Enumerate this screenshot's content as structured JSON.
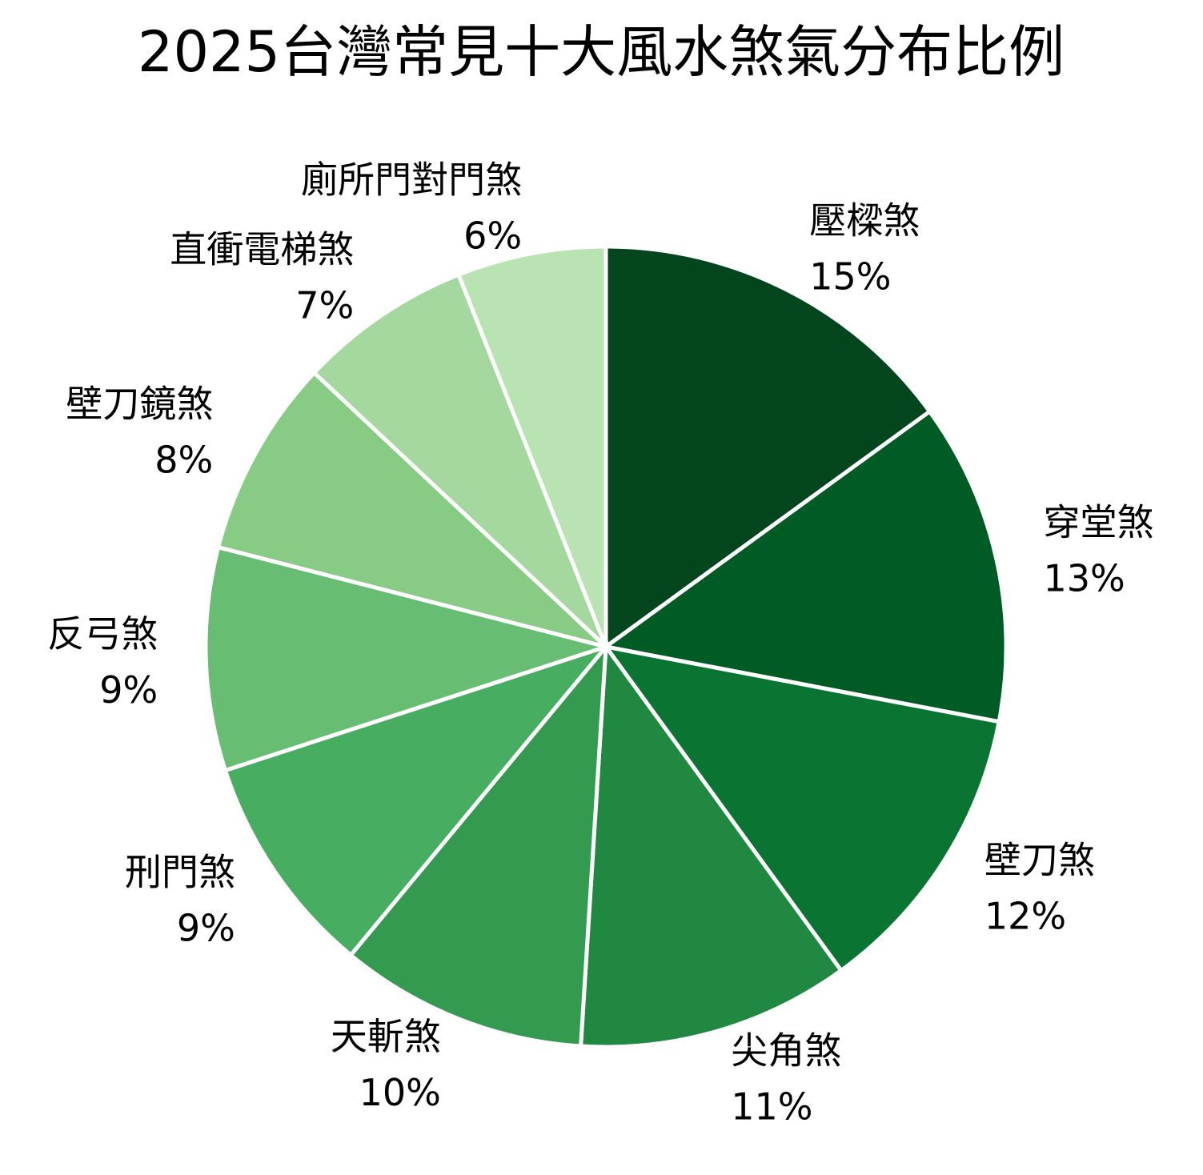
{
  "chart_data": {
    "type": "pie",
    "title": "2025台灣常見十大風水煞氣分布比例",
    "categories": [
      "壓樑煞",
      "穿堂煞",
      "壁刀煞",
      "尖角煞",
      "天斬煞",
      "刑門煞",
      "反弓煞",
      "壁刀鏡煞",
      "直衝電梯煞",
      "廁所門對門煞"
    ],
    "values": [
      15,
      13,
      12,
      11,
      10,
      9,
      9,
      8,
      7,
      6
    ],
    "value_labels": [
      "15%",
      "13%",
      "12%",
      "11%",
      "10%",
      "9%",
      "9%",
      "8%",
      "7%",
      "6%"
    ],
    "colors": [
      "#03461d",
      "#005b25",
      "#0a7432",
      "#208840",
      "#339a50",
      "#47ad61",
      "#67bd72",
      "#87cb85",
      "#a4d89e",
      "#b9e3b3"
    ]
  }
}
